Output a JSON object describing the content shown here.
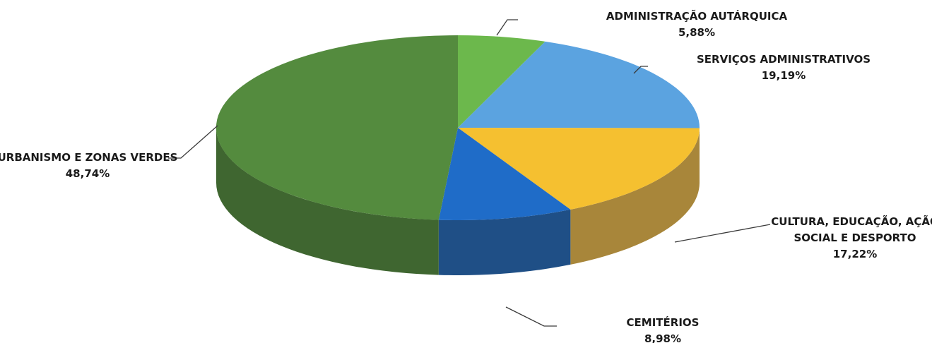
{
  "chart_data": {
    "type": "pie",
    "three_d": true,
    "title": "",
    "legend": "none",
    "slices": [
      {
        "label": "ADMINISTRAÇÃO AUTÁRQUICA",
        "value_label": "5,88%",
        "value": 5.88,
        "color": "#6cb84c",
        "side_color": "#4e8a36"
      },
      {
        "label": "SERVIÇOS ADMINISTRATIVOS",
        "value_label": "19,19%",
        "value": 19.19,
        "color": "#5ba3e0",
        "side_color": "#3f78ab"
      },
      {
        "label_lines": [
          "CULTURA, EDUCAÇÃO, AÇÃO",
          "SOCIAL E DESPORTO"
        ],
        "value_label": "17,22%",
        "value": 17.22,
        "color": "#f5c030",
        "side_color": "#a8863a"
      },
      {
        "label": "CEMITÉRIOS",
        "value_label": "8,98%",
        "value": 8.98,
        "color": "#1f6cc8",
        "side_color": "#1f4f86"
      },
      {
        "label": "URBANISMO E ZONAS VERDES",
        "value_label": "48,74%",
        "value": 48.74,
        "color": "#548b3e",
        "side_color": "#3f6630"
      }
    ]
  }
}
